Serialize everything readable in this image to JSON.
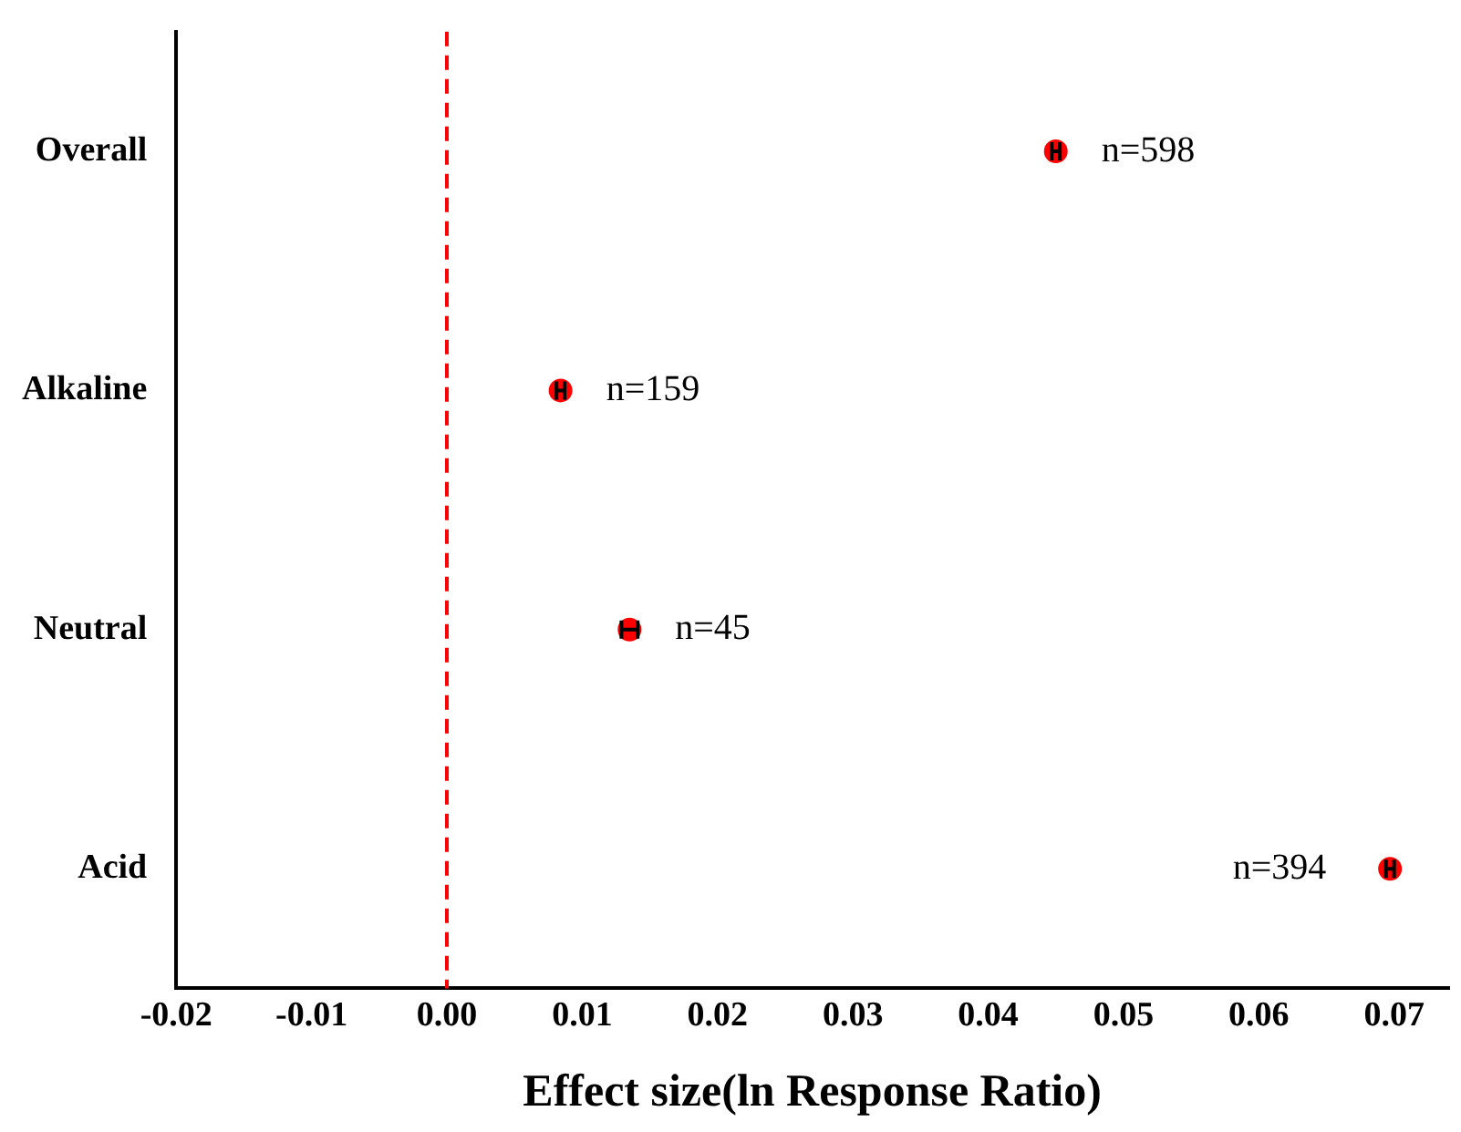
{
  "chart_data": {
    "type": "scatter",
    "orientation": "horizontal",
    "xlabel": "Effect size(ln Response Ratio)",
    "categories": [
      "Overall",
      "Alkaline",
      "Neutral",
      "Acid"
    ],
    "values": [
      0.045,
      0.0084,
      0.0135,
      0.0697
    ],
    "errors": [
      0.0003,
      0.0003,
      0.0006,
      0.0003
    ],
    "color": "#ff0000",
    "marker": "circle",
    "xlim": [
      -0.02,
      0.074
    ],
    "xticks": [
      {
        "value": -0.02,
        "label": "-0.02"
      },
      {
        "value": -0.01,
        "label": "-0.01"
      },
      {
        "value": 0,
        "label": "0.00"
      },
      {
        "value": 0.01,
        "label": "0.01"
      },
      {
        "value": 0.02,
        "label": "0.02"
      },
      {
        "value": 0.03,
        "label": "0.03"
      },
      {
        "value": 0.04,
        "label": "0.04"
      },
      {
        "value": 0.05,
        "label": "0.05"
      },
      {
        "value": 0.06,
        "label": "0.06"
      },
      {
        "value": 0.07,
        "label": "0.07"
      }
    ],
    "ref_lines": [
      {
        "axis": "x",
        "value": 0,
        "color": "#ff0000",
        "line_style": "dashed"
      }
    ],
    "annotations": [
      {
        "text": "n=598",
        "x": 0.045,
        "y": "Overall"
      },
      {
        "text": "n=159",
        "x": 0.0084,
        "y": "Alkaline"
      },
      {
        "text": "n=45",
        "x": 0.0135,
        "y": "Neutral"
      },
      {
        "text": "n=394",
        "x": 0.0697,
        "y": "Acid"
      }
    ],
    "grid": false,
    "legend": false
  }
}
